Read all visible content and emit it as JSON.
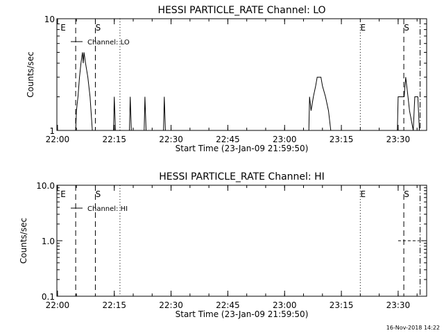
{
  "footer_stamp": "16-Nov-2018 14:22",
  "chart_data": [
    {
      "type": "line",
      "title": "HESSI PARTICLE_RATE Channel: LO",
      "xlabel": "Start Time (23-Jan-09 21:59:50)",
      "ylabel": "Counts/sec",
      "y_scale": "log",
      "ylim": [
        1,
        10
      ],
      "xlim_minutes_from_start": [
        0,
        97.7
      ],
      "x_tick_labels": [
        "22:00",
        "22:15",
        "22:30",
        "22:45",
        "23:00",
        "23:15",
        "23:30"
      ],
      "y_tick_labels": [
        "1",
        "10"
      ],
      "legend": {
        "label": "Channel: LO",
        "placement": "top-left"
      },
      "markers": [
        {
          "label": "E",
          "time": "22:04.8",
          "style": "dashed"
        },
        {
          "label": "S",
          "time": "22:10",
          "style": "dashed"
        },
        {
          "label": "",
          "time": "22:16.5",
          "style": "dotted"
        },
        {
          "label": "E",
          "time": "23:20",
          "style": "dotted"
        },
        {
          "label": "S",
          "time": "23:31.5",
          "style": "dashed"
        },
        {
          "label": "",
          "time": "23:35.8",
          "style": "dash-dot"
        }
      ],
      "series": [
        {
          "points": [
            [
              "22:04.8",
              1
            ],
            [
              "22:05.0",
              1.5
            ],
            [
              "22:05.4",
              2
            ],
            [
              "22:05.8",
              3
            ],
            [
              "22:06.2",
              4
            ],
            [
              "22:06.6",
              5
            ],
            [
              "22:06.8",
              4
            ],
            [
              "22:07.0",
              5
            ],
            [
              "22:07.4",
              4
            ],
            [
              "22:08.0",
              3
            ],
            [
              "22:08.6",
              2
            ],
            [
              "22:09.2",
              1
            ],
            [
              "22:14.8",
              1
            ],
            [
              "22:15.0",
              2
            ],
            [
              "22:15.3",
              1
            ],
            [
              "22:19.0",
              1
            ],
            [
              "22:19.2",
              2
            ],
            [
              "22:19.5",
              1
            ],
            [
              "22:22.9",
              1
            ],
            [
              "22:23.1",
              2
            ],
            [
              "22:23.4",
              1
            ],
            [
              "22:28.0",
              1
            ],
            [
              "22:28.2",
              2
            ],
            [
              "22:28.5",
              1
            ],
            [
              "23:06.4",
              1
            ],
            [
              "23:06.6",
              2
            ],
            [
              "23:07.0",
              1.5
            ],
            [
              "23:07.6",
              2
            ],
            [
              "23:08.2",
              2.5
            ],
            [
              "23:08.6",
              3
            ],
            [
              "23:09.6",
              3
            ],
            [
              "23:10.0",
              2.5
            ],
            [
              "23:10.8",
              2
            ],
            [
              "23:11.6",
              1.5
            ],
            [
              "23:12.2",
              1
            ],
            [
              "23:29.8",
              1
            ],
            [
              "23:30.0",
              2
            ],
            [
              "23:31.6",
              2
            ],
            [
              "23:32.0",
              3
            ],
            [
              "23:32.6",
              2
            ],
            [
              "23:33.0",
              1.5
            ],
            [
              "23:34.0",
              1
            ],
            [
              "23:34.4",
              2
            ],
            [
              "23:35.2",
              2
            ],
            [
              "23:35.6",
              1
            ]
          ]
        }
      ]
    },
    {
      "type": "line",
      "title": "HESSI PARTICLE_RATE Channel: HI",
      "xlabel": "Start Time (23-Jan-09 21:59:50)",
      "ylabel": "Counts/sec",
      "y_scale": "log",
      "ylim": [
        0.1,
        10
      ],
      "xlim_minutes_from_start": [
        0,
        97.7
      ],
      "x_tick_labels": [
        "22:00",
        "22:15",
        "22:30",
        "22:45",
        "23:00",
        "23:15",
        "23:30"
      ],
      "y_tick_labels": [
        "0.1",
        "1.0",
        "10.0"
      ],
      "legend": {
        "label": "Channel: HI",
        "placement": "top-left"
      },
      "markers": [
        {
          "label": "E",
          "time": "22:04.8",
          "style": "dashed"
        },
        {
          "label": "S",
          "time": "22:10",
          "style": "dashed"
        },
        {
          "label": "",
          "time": "22:16.5",
          "style": "dotted"
        },
        {
          "label": "E",
          "time": "23:20",
          "style": "dotted"
        },
        {
          "label": "S",
          "time": "23:31.5",
          "style": "dashed"
        },
        {
          "label": "",
          "time": "23:35.8",
          "style": "dash-dot"
        }
      ],
      "series": [
        {
          "points": [
            [
              "23:30.0",
              1
            ],
            [
              "23:35.6",
              1
            ]
          ]
        }
      ]
    }
  ]
}
